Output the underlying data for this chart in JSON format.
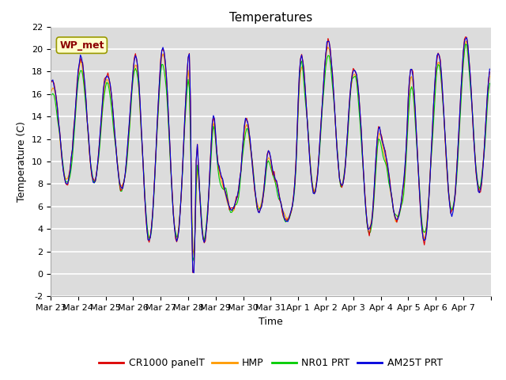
{
  "title": "Temperatures",
  "xlabel": "Time",
  "ylabel": "Temperature (C)",
  "ylim": [
    -2,
    22
  ],
  "bg_color": "#dcdcdc",
  "grid_color": "white",
  "annotation_text": "WP_met",
  "annotation_bg": "#ffffcc",
  "annotation_border": "#999900",
  "series_colors": [
    "#dd0000",
    "#ff9900",
    "#00cc00",
    "#0000dd"
  ],
  "series_labels": [
    "CR1000 panelT",
    "HMP",
    "NR01 PRT",
    "AM25T PRT"
  ],
  "x_tick_labels": [
    "Mar 23",
    "Mar 24",
    "Mar 25",
    "Mar 26",
    "Mar 27",
    "Mar 28",
    "Mar 29",
    "Mar 30",
    "Mar 31",
    "Apr 1",
    "Apr 2",
    "Apr 3",
    "Apr 4",
    "Apr 5",
    "Apr 6",
    "Apr 7"
  ],
  "title_fontsize": 11,
  "axis_fontsize": 9,
  "tick_fontsize": 8,
  "legend_fontsize": 9
}
